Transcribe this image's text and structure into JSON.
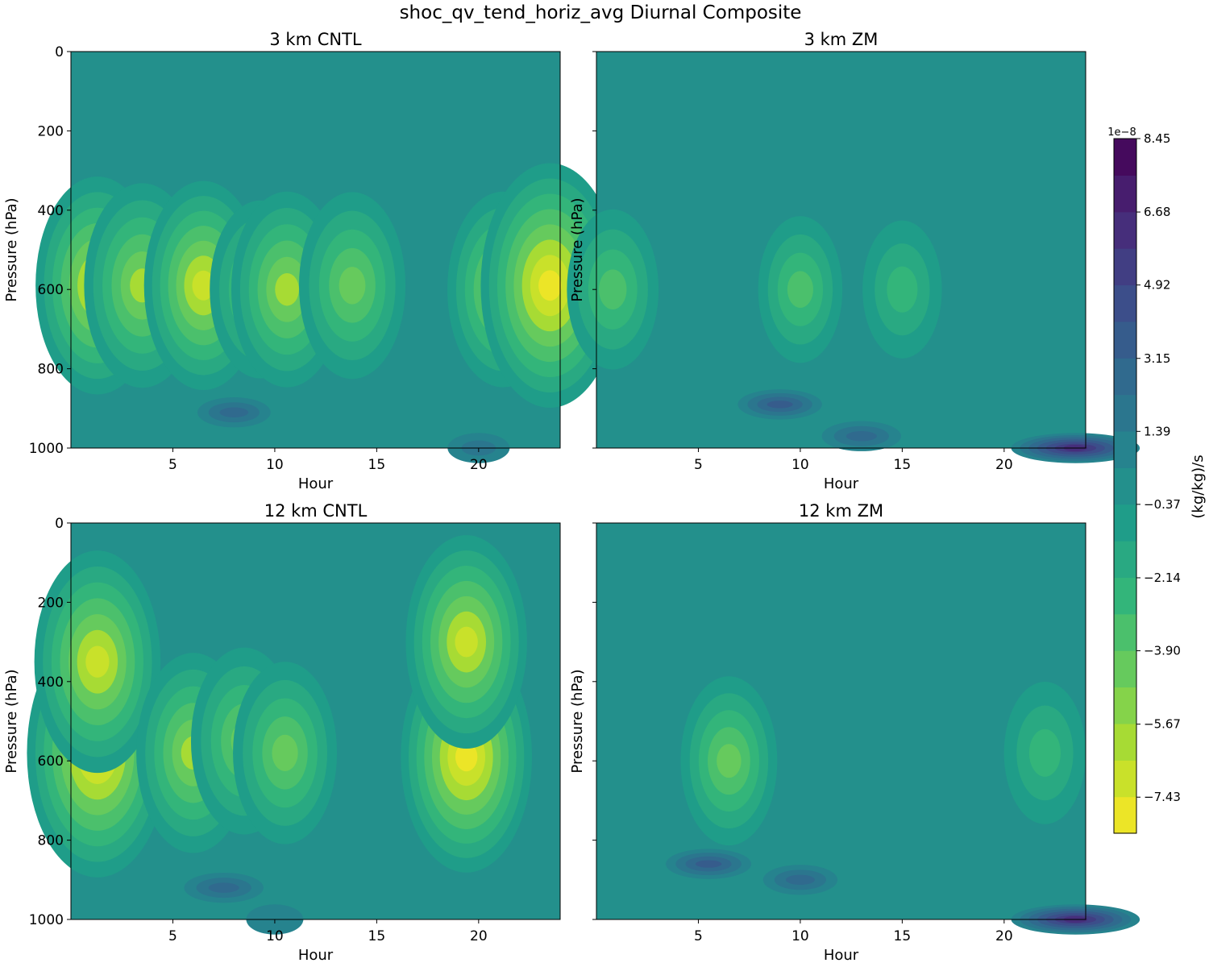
{
  "chart_data": {
    "type": "heatmap",
    "title": "shoc_qv_tend_horiz_avg Diurnal Composite",
    "colorbar": {
      "label": "(kg/kg)/s",
      "exponent": "1e−8",
      "ticks": [
        "8.45",
        "6.68",
        "4.92",
        "3.15",
        "1.39",
        "−0.37",
        "−2.14",
        "−3.90",
        "−5.67",
        "−7.43"
      ],
      "tick_values": [
        8.45,
        6.68,
        4.92,
        3.15,
        1.39,
        -0.37,
        -2.14,
        -3.9,
        -5.67,
        -7.43
      ],
      "range": [
        -8.3,
        8.45
      ],
      "levels": 19,
      "colormap": "viridis (reversed: yellow = negative, purple = positive)"
    },
    "x": {
      "label": "Hour",
      "lim": [
        0,
        24
      ],
      "ticks": [
        "5",
        "10",
        "15",
        "20"
      ]
    },
    "y": {
      "label": "Pressure (hPa)",
      "lim": [
        1000,
        0
      ],
      "ticks": [
        "0",
        "200",
        "400",
        "600",
        "800",
        "1000"
      ]
    },
    "panels": [
      {
        "title": "3 km CNTL",
        "features": [
          {
            "hour": 1.3,
            "p": 590,
            "value": -6.6
          },
          {
            "hour": 3.5,
            "p": 590,
            "value": -6.0
          },
          {
            "hour": 6.5,
            "p": 590,
            "value": -6.2
          },
          {
            "hour": 9.3,
            "p": 600,
            "value": -4.8
          },
          {
            "hour": 10.6,
            "p": 600,
            "value": -5.6
          },
          {
            "hour": 13.8,
            "p": 590,
            "value": -5.2
          },
          {
            "hour": 21.2,
            "p": 600,
            "value": -5.6
          },
          {
            "hour": 23.5,
            "p": 590,
            "value": -7.8
          },
          {
            "hour": 8.0,
            "p": 910,
            "value": 2.5
          },
          {
            "hour": 20.0,
            "p": 1000,
            "value": 1.6
          }
        ]
      },
      {
        "title": "3 km ZM",
        "features": [
          {
            "hour": 0.8,
            "p": 600,
            "value": -4.0
          },
          {
            "hour": 10.0,
            "p": 600,
            "value": -3.4
          },
          {
            "hour": 15.0,
            "p": 600,
            "value": -3.0
          },
          {
            "hour": 9.0,
            "p": 890,
            "value": 3.4
          },
          {
            "hour": 13.0,
            "p": 970,
            "value": 3.0
          },
          {
            "hour": 23.5,
            "p": 1000,
            "value": 7.0
          }
        ]
      },
      {
        "title": "12 km CNTL",
        "features": [
          {
            "hour": 1.3,
            "p": 580,
            "value": -8.0
          },
          {
            "hour": 1.3,
            "p": 350,
            "value": -6.8
          },
          {
            "hour": 6.0,
            "p": 580,
            "value": -5.8
          },
          {
            "hour": 8.5,
            "p": 550,
            "value": -5.2
          },
          {
            "hour": 10.5,
            "p": 580,
            "value": -5.0
          },
          {
            "hour": 19.4,
            "p": 590,
            "value": -7.2
          },
          {
            "hour": 19.4,
            "p": 300,
            "value": -6.4
          },
          {
            "hour": 7.5,
            "p": 920,
            "value": 3.0
          },
          {
            "hour": 10.0,
            "p": 1000,
            "value": 1.2
          }
        ]
      },
      {
        "title": "12 km ZM",
        "features": [
          {
            "hour": 6.5,
            "p": 600,
            "value": -4.4
          },
          {
            "hour": 22.0,
            "p": 580,
            "value": -3.2
          },
          {
            "hour": 5.5,
            "p": 860,
            "value": 3.5
          },
          {
            "hour": 10.0,
            "p": 900,
            "value": 2.6
          },
          {
            "hour": 23.5,
            "p": 1000,
            "value": 7.0
          }
        ]
      }
    ]
  }
}
